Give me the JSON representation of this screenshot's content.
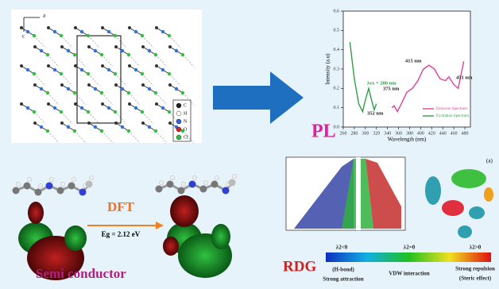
{
  "crystal": {
    "axis_a": "a",
    "axis_c": "c",
    "legend": [
      "C",
      "H",
      "N",
      "O",
      "Cl"
    ]
  },
  "pl_chart": {
    "type": "line",
    "title": "PL",
    "x_label": "Wavelength (nm)",
    "y_label": "Intensity (a.u)",
    "xlim": [
      260,
      490
    ],
    "ylim": [
      0,
      0.6
    ],
    "xticks": [
      260,
      280,
      300,
      320,
      340,
      360,
      380,
      400,
      420,
      440,
      460,
      480
    ],
    "yticks": [
      {
        "value": 0,
        "label": "0.0"
      },
      0.1,
      0.2,
      0.3,
      0.4,
      0.5,
      0.6
    ],
    "series": [
      {
        "name": "Emission Spectrum",
        "color": "#e0409a",
        "x": [
          348,
          352,
          358,
          365,
          375,
          385,
          395,
          405,
          415,
          425,
          435,
          445,
          451,
          460,
          468,
          478
        ],
        "values": [
          0.1,
          0.11,
          0.08,
          0.12,
          0.18,
          0.2,
          0.24,
          0.3,
          0.32,
          0.3,
          0.25,
          0.24,
          0.26,
          0.22,
          0.2,
          0.34
        ]
      },
      {
        "name": "Excitation Spectrum",
        "color": "#2e9e4a",
        "x": [
          272,
          280,
          288,
          295,
          300,
          306,
          312,
          316,
          320
        ],
        "values": [
          0.44,
          0.25,
          0.12,
          0.08,
          0.14,
          0.2,
          0.13,
          0.09,
          0.12
        ]
      }
    ],
    "annotations": [
      "λex = 280 nm",
      "352 nm",
      "375 nm",
      "415 nm",
      "451 nm"
    ]
  },
  "dft": {
    "title": "DFT",
    "gap": "Eg = 2.12 eV",
    "label": "Semi conductor"
  },
  "rdg": {
    "title": "RDG",
    "panel_label": "(a)",
    "scale_labels": [
      "λ2<0",
      "λ2=0",
      "λ2>0"
    ],
    "scale_notes": [
      "(H-bond)",
      "Strong attraction",
      "VDW interaction",
      "Strong repulsion",
      "(Steric effect)"
    ]
  }
}
